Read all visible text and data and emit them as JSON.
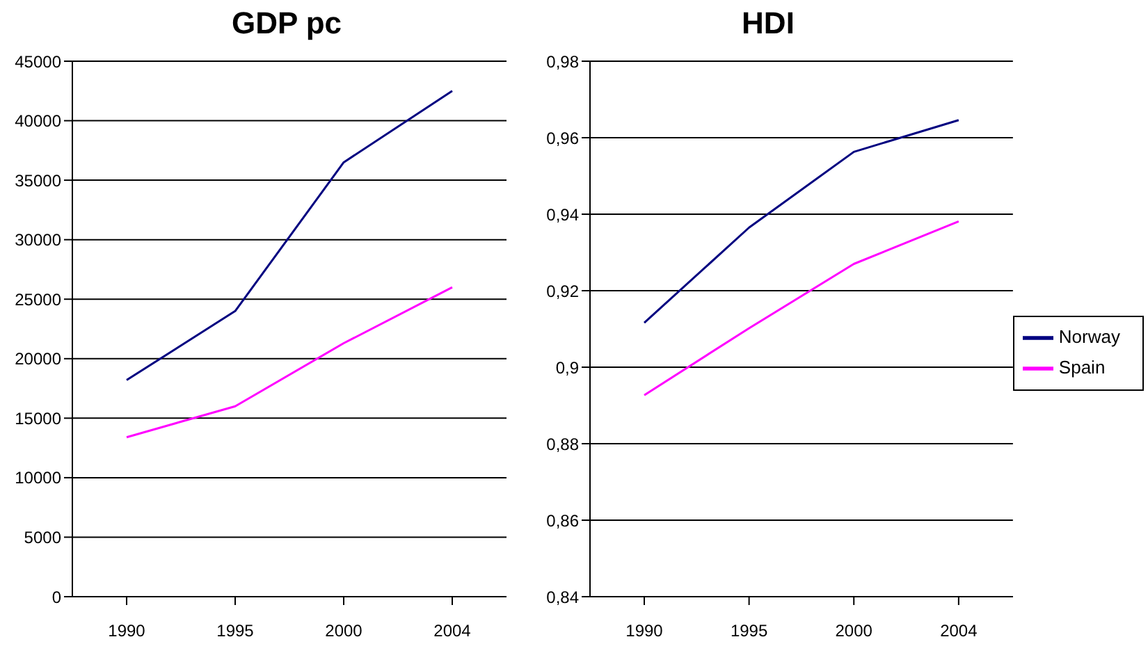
{
  "chart_data": [
    {
      "type": "line",
      "title": "GDP pc",
      "categories": [
        "1990",
        "1995",
        "2000",
        "2004"
      ],
      "series": [
        {
          "color": "#000080",
          "values": [
            18200,
            24000,
            36500,
            42500
          ]
        },
        {
          "color": "#ff00ff",
          "values": [
            13400,
            16000,
            21300,
            26000
          ]
        }
      ],
      "ylim": [
        0,
        45000
      ],
      "yticks": [
        0,
        5000,
        10000,
        15000,
        20000,
        25000,
        30000,
        35000,
        40000,
        45000
      ],
      "grid": "y",
      "legend": false,
      "marker": "none",
      "line_style": "solid"
    },
    {
      "type": "line",
      "title": "HDI",
      "categories": [
        "1990",
        "1995",
        "2000",
        "2004"
      ],
      "series": [
        {
          "name": "Norway",
          "color": "#000080",
          "values": [
            0.9116,
            0.9365,
            0.9563,
            0.9646
          ]
        },
        {
          "name": "Spain",
          "color": "#ff00ff",
          "values": [
            0.8927,
            0.9102,
            0.927,
            0.9381
          ]
        }
      ],
      "ylim": [
        0.84,
        0.98
      ],
      "yticks": [
        {
          "value": 0.84,
          "label": "0,84"
        },
        {
          "value": 0.86,
          "label": "0,86"
        },
        {
          "value": 0.88,
          "label": "0,88"
        },
        {
          "value": 0.9,
          "label": "0,9"
        },
        {
          "value": 0.92,
          "label": "0,92"
        },
        {
          "value": 0.94,
          "label": "0,94"
        },
        {
          "value": 0.96,
          "label": "0,96"
        },
        {
          "value": 0.98,
          "label": "0,98"
        }
      ],
      "grid": "y",
      "legend": "right",
      "marker": "none",
      "line_style": "solid"
    }
  ]
}
